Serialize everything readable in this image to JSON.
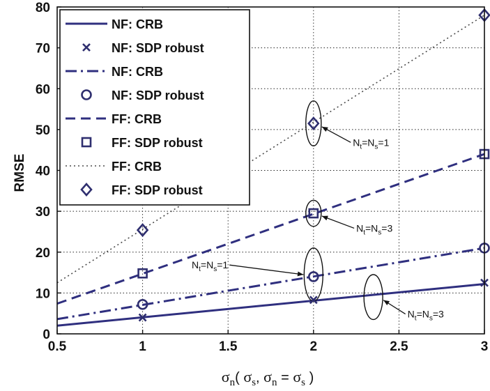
{
  "chart_data": {
    "type": "line",
    "title": "",
    "xlabel": {
      "main": "σ",
      "main_sub": "n",
      "open": "( ",
      "s1": "σ",
      "s1_sub": "s",
      "comma": ", ",
      "s2": "σ",
      "s2_sub": "n",
      "eq": " = ",
      "s3": "σ",
      "s3_sub": "s",
      "close": " )"
    },
    "ylabel": "RMSE",
    "xlim": [
      0.5,
      3
    ],
    "ylim": [
      0,
      80
    ],
    "x_ticks": [
      "0.5",
      "1",
      "1.5",
      "2",
      "2.5",
      "3"
    ],
    "y_ticks": [
      "0",
      "10",
      "20",
      "30",
      "40",
      "50",
      "60",
      "70",
      "80"
    ],
    "grid": true,
    "legend_position": "top-left",
    "series": [
      {
        "name": "NF: CRB",
        "style": "solid",
        "color": "#2f2f7f",
        "x": [
          0.5,
          3
        ],
        "y": [
          2.0,
          12.2
        ]
      },
      {
        "name": "NF: SDP robust",
        "style": "marker",
        "marker": "x",
        "color": "#2f2f6f",
        "x": [
          1,
          2,
          3
        ],
        "y": [
          4.0,
          8.3,
          12.5
        ]
      },
      {
        "name": "NF: CRB",
        "style": "dashdot",
        "color": "#2f2f7f",
        "x": [
          0.5,
          3
        ],
        "y": [
          3.6,
          21.0
        ]
      },
      {
        "name": "NF: SDP robust",
        "style": "marker",
        "marker": "o",
        "color": "#2f2f6f",
        "x": [
          1,
          2,
          3
        ],
        "y": [
          7.2,
          14.0,
          21.0
        ]
      },
      {
        "name": "FF: CRB",
        "style": "dashed",
        "color": "#2f2f7f",
        "x": [
          0.5,
          3
        ],
        "y": [
          7.4,
          44.0
        ]
      },
      {
        "name": "FF: SDP robust",
        "style": "marker",
        "marker": "square",
        "color": "#2f2f6f",
        "x": [
          1,
          2,
          3
        ],
        "y": [
          14.8,
          29.5,
          44.0
        ]
      },
      {
        "name": "FF: CRB",
        "style": "dotted",
        "color": "#4a4a4a",
        "x": [
          0.5,
          3
        ],
        "y": [
          12.5,
          78.0
        ]
      },
      {
        "name": "FF: SDP robust",
        "style": "marker",
        "marker": "diamond",
        "color": "#2f2f6f",
        "x": [
          1,
          2,
          3
        ],
        "y": [
          25.4,
          51.5,
          78.0
        ]
      }
    ],
    "annotations": [
      {
        "text": "N",
        "sub1": "t",
        "mid": "=N",
        "sub2": "s",
        "end": "=1",
        "ellipse_x": 2.0,
        "ellipse_y": 51.5,
        "ellipse_rx": 0.045,
        "ellipse_ry": 5.5,
        "label_side": "right",
        "label_x": 2.23,
        "label_y": 46
      },
      {
        "text": "N",
        "sub1": "t",
        "mid": "=N",
        "sub2": "s",
        "end": "=3",
        "ellipse_x": 2.0,
        "ellipse_y": 29.5,
        "ellipse_rx": 0.045,
        "ellipse_ry": 3.2,
        "label_side": "right",
        "label_x": 2.25,
        "label_y": 25
      },
      {
        "text": "N",
        "sub1": "t",
        "mid": "=N",
        "sub2": "s",
        "end": "=1",
        "ellipse_x": 2.0,
        "ellipse_y": 14.5,
        "ellipse_rx": 0.055,
        "ellipse_ry": 6.5,
        "label_side": "left",
        "label_x": 1.5,
        "label_y": 16
      },
      {
        "text": "N",
        "sub1": "t",
        "mid": "=N",
        "sub2": "s",
        "end": "=3",
        "ellipse_x": 2.35,
        "ellipse_y": 9.0,
        "ellipse_rx": 0.055,
        "ellipse_ry": 5.5,
        "label_side": "right",
        "label_x": 2.55,
        "label_y": 4
      }
    ]
  }
}
